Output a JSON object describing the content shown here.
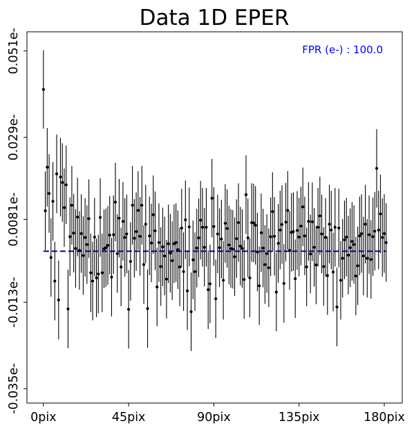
{
  "chart_data": {
    "type": "scatter",
    "title": "Data 1D EPER",
    "xlabel": "",
    "ylabel": "",
    "x_ticks": [
      {
        "value": 0,
        "label": "0pix"
      },
      {
        "value": 45,
        "label": "45pix"
      },
      {
        "value": 90,
        "label": "90pix"
      },
      {
        "value": 135,
        "label": "135pix"
      },
      {
        "value": 180,
        "label": "180pix"
      }
    ],
    "y_ticks": [
      {
        "value": 0.051,
        "label": "0.051e-"
      },
      {
        "value": 0.029,
        "label": "0.029e-"
      },
      {
        "value": 0.0081,
        "label": "0.0081e-"
      },
      {
        "value": -0.013,
        "label": "-0.013e-"
      },
      {
        "value": -0.035,
        "label": "-0.035e-"
      }
    ],
    "xlim": [
      -8.7,
      189.5
    ],
    "ylim": [
      -0.03866,
      0.05588
    ],
    "grid": false,
    "reference_line": {
      "y": 0.0,
      "style": "dashed",
      "color": "#00008b"
    },
    "annotation": {
      "text": "FPR (e-) : 100.0",
      "color": "#0000ff",
      "placement": "top-right"
    },
    "marker_color": "#000000",
    "errorbar_halfwidth": 0.01,
    "series": [
      {
        "values": [
          0.0412,
          0.0103,
          0.0214,
          0.0147,
          -0.0016,
          0.0127,
          -0.0076,
          0.0197,
          -0.0124,
          0.0189,
          0.0175,
          0.0111,
          0.0169,
          -0.0147,
          0.0037,
          0.0117,
          0.0046,
          0.0007,
          0.0087,
          0.0002,
          0.0045,
          -0.0011,
          0.0035,
          0.0017,
          0.0083,
          -0.0055,
          -0.0076,
          0.0036,
          -0.0068,
          -0.0058,
          0.0086,
          -0.0055,
          0.0006,
          0.0009,
          0.0015,
          0.0041,
          -0.0066,
          0.0042,
          0.0125,
          -0.0006,
          0.0084,
          -0.004,
          0.0076,
          0.0035,
          0.0044,
          -0.0148,
          -0.0026,
          0.0117,
          0.0033,
          0.005,
          0.0104,
          0.0038,
          0.0117,
          -0.0034,
          0.0069,
          -0.0146,
          0.0039,
          0.0021,
          0.0093,
          0.0052,
          -0.0091,
          0.0022,
          -0.0039,
          0.0011,
          -0.0012,
          -0.0071,
          0.0019,
          -0.0005,
          -0.0024,
          0.0019,
          0.0022,
          0.0004,
          -0.004,
          0.0059,
          -0.0052,
          0.008,
          -0.0101,
          0.0062,
          -0.0154,
          -0.0022,
          -0.0052,
          0.0008,
          0.0034,
          0.0079,
          0.0061,
          0.001,
          0.0061,
          -0.0098,
          -0.0083,
          0.0135,
          0.0063,
          -0.0121,
          0.0044,
          0.0009,
          0.0031,
          -0.0074,
          0.0071,
          0.0058,
          0.0016,
          0.0007,
          0.0005,
          -0.0014,
          0.0032,
          0.0073,
          0.0013,
          0.0007,
          -0.0072,
          0.0144,
          0.0034,
          -0.0068,
          0.0073,
          0.0072,
          0.0066,
          -0.0002,
          -0.0088,
          0.0047,
          0.0008,
          -0.0034,
          -0.0006,
          -0.0042,
          0.0037,
          0.0101,
          0.0038,
          -0.0104,
          0.002,
          0.0054,
          0.0068,
          -0.0082,
          0.0074,
          0.0104,
          0.0002,
          0.0048,
          0.005,
          -0.007,
          0.0053,
          0.0036,
          0.0064,
          0.0113,
          0.0039,
          -0.004,
          0.0076,
          -0.0007,
          0.0075,
          0.001,
          -0.0035,
          0.0061,
          0.009,
          0.0044,
          -0.0039,
          0.0035,
          -0.0062,
          0.0069,
          0.0054,
          -0.0053,
          0.0061,
          -0.0142,
          0.0059,
          -0.0074,
          -0.0018,
          0.0029,
          0.0036,
          -0.001,
          0.0009,
          0.0025,
          0.0017,
          -0.0063,
          -0.0037,
          0.0039,
          0.0045,
          -0.0012,
          0.0069,
          -0.0018,
          0.0042,
          -0.0021,
          0.0037,
          0.0051,
          0.0211,
          0.0054,
          0.0095,
          0.0035,
          0.0045,
          0.0022
        ]
      }
    ]
  }
}
